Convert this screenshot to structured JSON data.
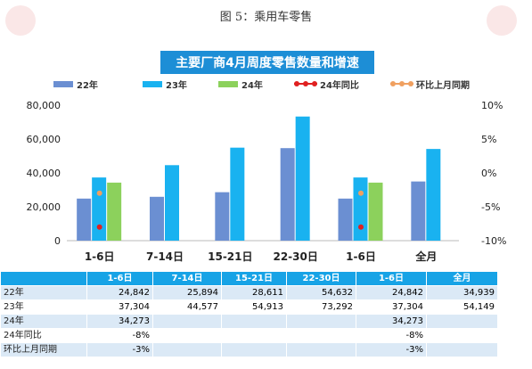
{
  "caption": "图 5：乘用车零售",
  "colors": {
    "s22": "#6b8fd2",
    "s23": "#19b2f0",
    "s24": "#8cd15c",
    "yoy": "#e02020",
    "mom": "#f0a060",
    "title_bg": "#1d8ed6",
    "table_head": "#17a3e6",
    "table_alt": "#dbe9f6"
  },
  "chart_data": {
    "type": "bar",
    "title": "主要厂商4月周度零售数量和增速",
    "categories": [
      "1-6日",
      "7-14日",
      "15-21日",
      "22-30日",
      "1-6日",
      "全月"
    ],
    "series": [
      {
        "name": "22年",
        "values": [
          24842,
          25894,
          28611,
          54632,
          24842,
          34939
        ]
      },
      {
        "name": "23年",
        "values": [
          37304,
          44577,
          54913,
          73292,
          37304,
          54149
        ]
      },
      {
        "name": "24年",
        "values": [
          34273,
          null,
          null,
          null,
          34273,
          null
        ]
      }
    ],
    "line_series": [
      {
        "name": "24年同比",
        "axis": "right",
        "values": [
          -8,
          null,
          null,
          null,
          -8,
          null
        ]
      },
      {
        "name": "环比上月同期",
        "axis": "right",
        "values": [
          -3,
          null,
          null,
          null,
          -3,
          null
        ]
      }
    ],
    "y_left": {
      "ylim": [
        0,
        80000
      ],
      "ticks": [
        "0",
        "20,000",
        "40,000",
        "60,000",
        "80,000"
      ]
    },
    "y_right": {
      "ylim": [
        -10,
        10
      ],
      "ticks": [
        "-10%",
        "-5%",
        "0%",
        "5%",
        "10%"
      ]
    },
    "legend_placement": "top"
  },
  "table": {
    "header": [
      "",
      "1-6日",
      "7-14日",
      "15-21日",
      "22-30日",
      "1-6日",
      "全月"
    ],
    "rows": [
      [
        "22年",
        "24,842",
        "25,894",
        "28,611",
        "54,632",
        "24,842",
        "34,939"
      ],
      [
        "23年",
        "37,304",
        "44,577",
        "54,913",
        "73,292",
        "37,304",
        "54,149"
      ],
      [
        "24年",
        "34,273",
        "",
        "",
        "",
        "34,273",
        ""
      ],
      [
        "24年同比",
        "-8%",
        "",
        "",
        "",
        "-8%",
        ""
      ],
      [
        "环比上月同期",
        "-3%",
        "",
        "",
        "",
        "-3%",
        ""
      ]
    ]
  }
}
